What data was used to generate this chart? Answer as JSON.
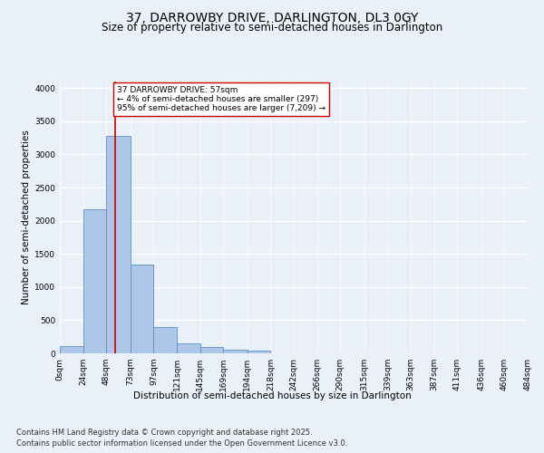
{
  "title": "37, DARROWBY DRIVE, DARLINGTON, DL3 0GY",
  "subtitle": "Size of property relative to semi-detached houses in Darlington",
  "xlabel": "Distribution of semi-detached houses by size in Darlington",
  "ylabel": "Number of semi-detached properties",
  "footnote1": "Contains HM Land Registry data © Crown copyright and database right 2025.",
  "footnote2": "Contains public sector information licensed under the Open Government Licence v3.0.",
  "bin_edges": [
    0,
    24,
    48,
    73,
    97,
    121,
    145,
    169,
    194,
    218,
    242,
    266,
    290,
    315,
    339,
    363,
    387,
    411,
    436,
    460,
    484
  ],
  "bar_heights": [
    110,
    2170,
    3280,
    1340,
    390,
    155,
    100,
    60,
    35,
    0,
    0,
    0,
    0,
    0,
    0,
    0,
    0,
    0,
    0,
    0
  ],
  "bar_color": "#aec6e8",
  "bar_edge_color": "#5a8fc2",
  "property_size": 57,
  "property_line_color": "#cc0000",
  "annotation_text": "37 DARROWBY DRIVE: 57sqm\n← 4% of semi-detached houses are smaller (297)\n95% of semi-detached houses are larger (7,209) →",
  "annotation_box_color": "#ffffff",
  "annotation_box_edge_color": "#cc0000",
  "ylim": [
    0,
    4100
  ],
  "yticks": [
    0,
    500,
    1000,
    1500,
    2000,
    2500,
    3000,
    3500,
    4000
  ],
  "bg_color": "#eaf0f8",
  "grid_color": "#ffffff",
  "title_fontsize": 10,
  "subtitle_fontsize": 8.5,
  "axis_label_fontsize": 7.5,
  "tick_fontsize": 6.5,
  "annotation_fontsize": 6.5,
  "footnote_fontsize": 6.0
}
